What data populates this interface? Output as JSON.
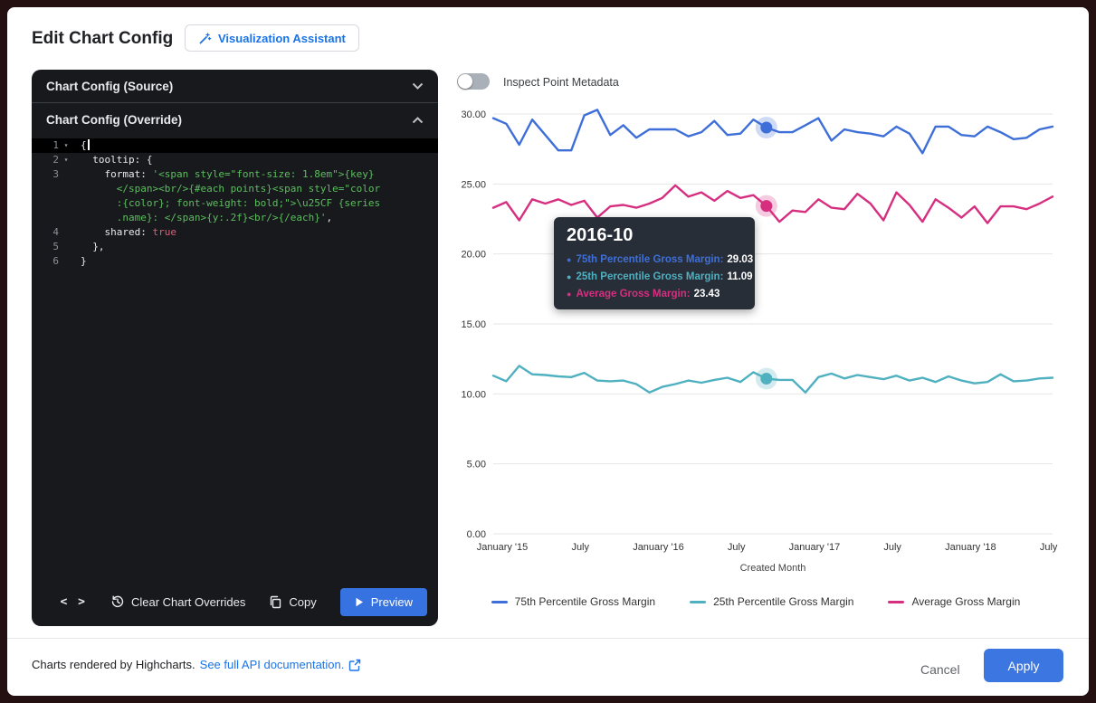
{
  "dialog": {
    "title": "Edit Chart Config",
    "viz_assistant_label": "Visualization Assistant"
  },
  "editor": {
    "source_header": "Chart Config (Source)",
    "override_header": "Chart Config (Override)",
    "code_rows": [
      {
        "num": "1",
        "fold": true,
        "selected": true,
        "cursor": true,
        "segments": [
          {
            "t": "{",
            "c": "p"
          }
        ]
      },
      {
        "num": "2",
        "fold": true,
        "segments": [
          {
            "t": "  tooltip: {",
            "c": "p"
          }
        ]
      },
      {
        "num": "3",
        "segments": [
          {
            "t": "    format: ",
            "c": "p"
          },
          {
            "t": "'<span style=\"font-size: 1.8em\">{key}",
            "c": "s"
          }
        ]
      },
      {
        "num": "",
        "segments": [
          {
            "t": "      </span><br/>{#each points}<span style=\"color",
            "c": "s"
          }
        ]
      },
      {
        "num": "",
        "segments": [
          {
            "t": "      :{color}; font-weight: bold;\">\\u25CF {series",
            "c": "s"
          }
        ]
      },
      {
        "num": "",
        "segments": [
          {
            "t": "      .name}: </span>{y:.2f}<br/>{/each}'",
            "c": "s"
          },
          {
            "t": ",",
            "c": "p"
          }
        ]
      },
      {
        "num": "4",
        "segments": [
          {
            "t": "    shared: ",
            "c": "p"
          },
          {
            "t": "true",
            "c": "k"
          }
        ]
      },
      {
        "num": "5",
        "segments": [
          {
            "t": "  },",
            "c": "p"
          }
        ]
      },
      {
        "num": "6",
        "segments": [
          {
            "t": "}",
            "c": "p"
          }
        ]
      }
    ],
    "toolbar": {
      "code_glyph": "< >",
      "clear_label": "Clear Chart Overrides",
      "copy_label": "Copy",
      "preview_label": "Preview"
    }
  },
  "chart_panel": {
    "toggle_label": "Inspect Point Metadata",
    "toggle_state": "off",
    "tooltip": {
      "title": "2016-10",
      "rows": [
        {
          "label": "75th Percentile Gross Margin:",
          "value": "29.03",
          "color": "#3e6fd9"
        },
        {
          "label": "25th Percentile Gross Margin:",
          "value": "11.09",
          "color": "#4fb0c0"
        },
        {
          "label": "Average Gross Margin:",
          "value": "23.43",
          "color": "#d62f80"
        }
      ]
    }
  },
  "chart_data": {
    "type": "line",
    "x_axis_title": "Created Month",
    "ylim": [
      0,
      30
    ],
    "grid": true,
    "legend_position": "bottom",
    "y_ticks": [
      0,
      5,
      10,
      15,
      20,
      25,
      30
    ],
    "y_tick_labels": [
      "0.00",
      "5.00",
      "10.00",
      "15.00",
      "20.00",
      "25.00",
      "30.00"
    ],
    "x_tick_indices": [
      0,
      6,
      12,
      18,
      24,
      30,
      36,
      42
    ],
    "x_tick_labels": [
      "January '15",
      "July",
      "January '16",
      "July",
      "January '17",
      "July",
      "January '18",
      "July"
    ],
    "categories": [
      "2015-01",
      "2015-02",
      "2015-03",
      "2015-04",
      "2015-05",
      "2015-06",
      "2015-07",
      "2015-08",
      "2015-09",
      "2015-10",
      "2015-11",
      "2015-12",
      "2016-01",
      "2016-02",
      "2016-03",
      "2016-04",
      "2016-05",
      "2016-06",
      "2016-07",
      "2016-08",
      "2016-09",
      "2016-10",
      "2016-11",
      "2016-12",
      "2017-01",
      "2017-02",
      "2017-03",
      "2017-04",
      "2017-05",
      "2017-06",
      "2017-07",
      "2017-08",
      "2017-09",
      "2017-10",
      "2017-11",
      "2017-12",
      "2018-01",
      "2018-02",
      "2018-03",
      "2018-04",
      "2018-05",
      "2018-06",
      "2018-07",
      "2018-08"
    ],
    "hover_index": 21,
    "hover_category": "2016-10",
    "series": [
      {
        "name": "75th Percentile Gross Margin",
        "color": "#3e6fd9",
        "values": [
          29.7,
          29.3,
          27.8,
          29.6,
          28.5,
          27.4,
          27.4,
          29.9,
          30.3,
          28.5,
          29.2,
          28.3,
          28.9,
          28.9,
          28.9,
          28.4,
          28.7,
          29.5,
          28.5,
          28.6,
          29.6,
          29.03,
          28.7,
          28.7,
          29.2,
          29.7,
          28.1,
          28.9,
          28.7,
          28.6,
          28.4,
          29.1,
          28.6,
          27.2,
          29.1,
          29.1,
          28.5,
          28.4,
          29.1,
          28.7,
          28.2,
          28.3,
          28.9,
          29.1
        ]
      },
      {
        "name": "25th Percentile Gross Margin",
        "color": "#4fb0c0",
        "values": [
          11.3,
          10.9,
          12.0,
          11.4,
          11.35,
          11.25,
          11.2,
          11.5,
          10.95,
          10.9,
          10.95,
          10.7,
          10.1,
          10.5,
          10.7,
          10.95,
          10.8,
          11.0,
          11.15,
          10.85,
          11.55,
          11.09,
          11.0,
          11.0,
          10.1,
          11.2,
          11.45,
          11.1,
          11.35,
          11.2,
          11.05,
          11.3,
          10.95,
          11.15,
          10.85,
          11.25,
          10.95,
          10.75,
          10.85,
          11.4,
          10.9,
          10.95,
          11.1,
          11.15
        ]
      },
      {
        "name": "Average Gross Margin",
        "color": "#d62f80",
        "values": [
          23.3,
          23.7,
          22.4,
          23.9,
          23.6,
          23.9,
          23.5,
          23.8,
          22.6,
          23.4,
          23.5,
          23.3,
          23.6,
          24.0,
          24.9,
          24.1,
          24.4,
          23.8,
          24.5,
          24.0,
          24.2,
          23.43,
          22.3,
          23.1,
          23.0,
          23.9,
          23.3,
          23.2,
          24.3,
          23.6,
          22.4,
          24.4,
          23.5,
          22.3,
          23.9,
          23.3,
          22.6,
          23.4,
          22.2,
          23.4,
          23.4,
          23.2,
          23.6,
          24.1
        ]
      }
    ]
  },
  "footer": {
    "note": "Charts rendered by Highcharts.",
    "link_label": "See full API documentation.",
    "cancel_label": "Cancel",
    "apply_label": "Apply"
  }
}
